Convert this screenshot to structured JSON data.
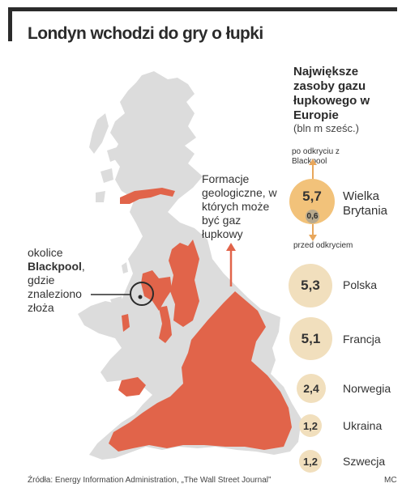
{
  "title": "Londyn wchodzi do gry o łupki",
  "legend": {
    "title": "Największe zasoby gazu łupkowego w Europie",
    "unit": "(bln m sześc.)",
    "after_label": "po odkryciu z Blackpool",
    "before_label": "przed odkryciem"
  },
  "reserves": [
    {
      "country": "Wielka Brytania",
      "value": "5,7",
      "before": "0,6"
    },
    {
      "country": "Polska",
      "value": "5,3"
    },
    {
      "country": "Francja",
      "value": "5,1"
    },
    {
      "country": "Norwegia",
      "value": "2,4"
    },
    {
      "country": "Ukraina",
      "value": "1,2"
    },
    {
      "country": "Szwecja",
      "value": "1,2"
    }
  ],
  "chart_data": {
    "type": "bubble",
    "title": "Największe zasoby gazu łupkowego w Europie",
    "unit": "bln m sześc.",
    "categories": [
      "Wielka Brytania",
      "Polska",
      "Francja",
      "Norwegia",
      "Ukraina",
      "Szwecja"
    ],
    "values": [
      5.7,
      5.3,
      5.1,
      2.4,
      1.2,
      1.2
    ],
    "before_discovery": {
      "Wielka Brytania": 0.6
    }
  },
  "map": {
    "formations_label": "Formacje geologiczne, w których może być gaz łupkowy",
    "blackpool_pre": "okolice",
    "blackpool_name": "Blackpool",
    "blackpool_post": ", gdzie znaleziono złoża",
    "land_color": "#dcdcdc",
    "formation_color": "#e1644a"
  },
  "source": "Źródła: Energy Information Administration, „The Wall Street Journal”",
  "credit": "MC"
}
